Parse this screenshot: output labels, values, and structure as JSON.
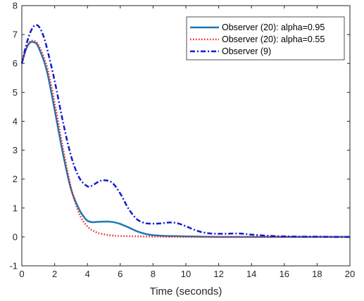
{
  "chart_data": {
    "type": "line",
    "title": "",
    "xlabel": "Time (seconds)",
    "ylabel": "",
    "xlim": [
      0,
      20
    ],
    "ylim": [
      -1,
      8
    ],
    "xticks": [
      0,
      2,
      4,
      6,
      8,
      10,
      12,
      14,
      16,
      18,
      20
    ],
    "yticks": [
      -1,
      0,
      1,
      2,
      3,
      4,
      5,
      6,
      7,
      8
    ],
    "xtick_labels": [
      "0",
      "2",
      "4",
      "6",
      "8",
      "10",
      "12",
      "14",
      "16",
      "18",
      "20"
    ],
    "ytick_labels": [
      "-1",
      "0",
      "1",
      "2",
      "3",
      "4",
      "5",
      "6",
      "7",
      "8"
    ],
    "grid": false,
    "legend_position": "top-right",
    "series": [
      {
        "name": "Observer (20): alpha=0.95",
        "color": "#1f77b4",
        "style": "solid",
        "x": [
          0,
          0.25,
          0.5,
          0.75,
          1.0,
          1.5,
          2.0,
          2.5,
          3.0,
          3.5,
          3.8,
          4.0,
          4.3,
          4.6,
          5.0,
          5.3,
          5.6,
          6.0,
          6.5,
          7.0,
          7.5,
          8.0,
          8.5,
          9.0,
          10,
          11,
          12,
          14,
          16,
          18,
          20
        ],
        "y": [
          6.0,
          6.48,
          6.72,
          6.73,
          6.58,
          5.8,
          4.4,
          2.9,
          1.65,
          0.95,
          0.68,
          0.56,
          0.51,
          0.52,
          0.53,
          0.53,
          0.51,
          0.45,
          0.33,
          0.2,
          0.11,
          0.06,
          0.04,
          0.03,
          0.02,
          0.01,
          0.0,
          0.0,
          0.0,
          0.0,
          0.0
        ]
      },
      {
        "name": "Observer (20): alpha=0.55",
        "color": "#e8201f",
        "style": "dotted",
        "x": [
          0,
          0.25,
          0.5,
          0.75,
          1.0,
          1.5,
          2.0,
          2.5,
          3.0,
          3.5,
          4.0,
          4.5,
          5.0,
          5.5,
          6.0,
          7.0,
          8.0,
          10,
          12,
          14,
          16,
          18,
          20
        ],
        "y": [
          6.0,
          6.5,
          6.75,
          6.78,
          6.65,
          5.95,
          4.65,
          3.1,
          1.7,
          0.8,
          0.36,
          0.17,
          0.09,
          0.05,
          0.03,
          0.02,
          0.01,
          0.0,
          0.0,
          0.0,
          0.0,
          0.0,
          0.0
        ]
      },
      {
        "name": "Observer (9)",
        "color": "#1419d0",
        "style": "dashdot",
        "x": [
          0,
          0.25,
          0.5,
          0.75,
          1.0,
          1.25,
          1.5,
          2.0,
          2.5,
          3.0,
          3.5,
          4.0,
          4.3,
          4.7,
          5.0,
          5.5,
          6.0,
          6.5,
          7.0,
          7.5,
          8.0,
          8.5,
          9.0,
          9.5,
          10.0,
          10.5,
          11.0,
          11.5,
          12.0,
          12.5,
          13.0,
          13.5,
          14.0,
          15.0,
          16.0,
          17.0,
          18.0,
          19.0,
          20.0
        ],
        "y": [
          6.0,
          6.6,
          7.05,
          7.3,
          7.3,
          7.05,
          6.6,
          5.4,
          4.0,
          2.8,
          2.05,
          1.75,
          1.78,
          1.92,
          1.96,
          1.88,
          1.5,
          0.98,
          0.62,
          0.48,
          0.46,
          0.47,
          0.5,
          0.47,
          0.37,
          0.25,
          0.16,
          0.12,
          0.11,
          0.11,
          0.12,
          0.11,
          0.08,
          0.04,
          0.02,
          0.01,
          0.01,
          0.0,
          0.0
        ]
      }
    ]
  }
}
